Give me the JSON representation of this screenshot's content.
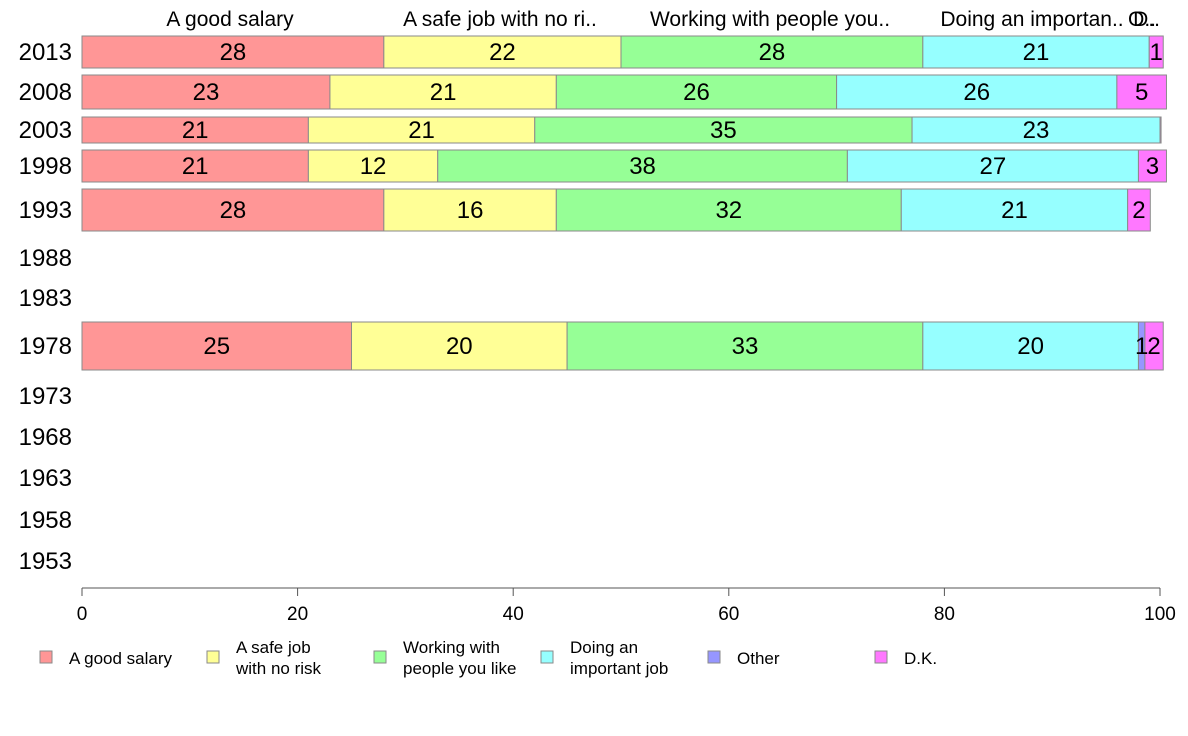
{
  "chart_data": {
    "type": "bar",
    "orientation": "horizontal",
    "stacked": true,
    "years": [
      "2013",
      "2008",
      "2003",
      "1998",
      "1993",
      "1988",
      "1983",
      "1978",
      "1973",
      "1968",
      "1963",
      "1958",
      "1953"
    ],
    "series": [
      {
        "name": "A good salary",
        "legend_lines": [
          "A good salary"
        ],
        "header": "A good salary",
        "color": "#ff9696",
        "values": [
          28,
          23,
          21,
          21,
          28,
          null,
          null,
          25,
          null,
          null,
          null,
          null,
          null
        ],
        "labels": [
          "28",
          "23",
          "21",
          "21",
          "28",
          "",
          "",
          "25",
          "",
          "",
          "",
          "",
          ""
        ]
      },
      {
        "name": "A safe job with no risk",
        "legend_lines": [
          "A safe job",
          "with no risk"
        ],
        "header": "A safe job with no ri..",
        "color": "#ffff96",
        "values": [
          22,
          21,
          21,
          12,
          16,
          null,
          null,
          20,
          null,
          null,
          null,
          null,
          null
        ],
        "labels": [
          "22",
          "21",
          "21",
          "12",
          "16",
          "",
          "",
          "20",
          "",
          "",
          "",
          "",
          ""
        ]
      },
      {
        "name": "Working with people you like",
        "legend_lines": [
          "Working with",
          "people you like"
        ],
        "header": "Working with people you..",
        "color": "#96ff96",
        "values": [
          28,
          26,
          35,
          38,
          32,
          null,
          null,
          33,
          null,
          null,
          null,
          null,
          null
        ],
        "labels": [
          "28",
          "26",
          "35",
          "38",
          "32",
          "",
          "",
          "33",
          "",
          "",
          "",
          "",
          ""
        ]
      },
      {
        "name": "Doing an important job",
        "legend_lines": [
          "Doing an",
          "important job"
        ],
        "header": "Doing an importan..",
        "color": "#96ffff",
        "values": [
          21,
          26,
          23,
          27,
          21,
          null,
          null,
          20,
          null,
          null,
          null,
          null,
          null
        ],
        "labels": [
          "21",
          "26",
          "23",
          "27",
          "21",
          "",
          "",
          "20",
          "",
          "",
          "",
          "",
          ""
        ]
      },
      {
        "name": "Other",
        "legend_lines": [
          "Other"
        ],
        "header": "O..",
        "color": "#9696ff",
        "values": [
          0,
          0,
          0,
          0,
          0,
          null,
          null,
          0.6,
          null,
          null,
          null,
          null,
          null
        ],
        "labels": [
          "",
          "",
          "",
          "",
          "",
          "",
          "",
          "1",
          "",
          "",
          "",
          "",
          ""
        ]
      },
      {
        "name": "D.K.",
        "legend_lines": [
          "D.K."
        ],
        "header": "D..",
        "color": "#ff78ff",
        "values": [
          1.3,
          4.6,
          0.1,
          2.6,
          2.1,
          null,
          null,
          1.7,
          null,
          null,
          null,
          null,
          null
        ],
        "labels": [
          "1",
          "5",
          "",
          "3",
          "2",
          "",
          "",
          "2",
          "",
          "",
          "",
          "",
          ""
        ]
      }
    ],
    "x_ticks": [
      "0",
      "20",
      "40",
      "60",
      "80",
      "100"
    ],
    "xlim": [
      0,
      100
    ],
    "xlabel": "",
    "ylabel": "",
    "title": "",
    "legend_position": "bottom",
    "grid": false
  }
}
